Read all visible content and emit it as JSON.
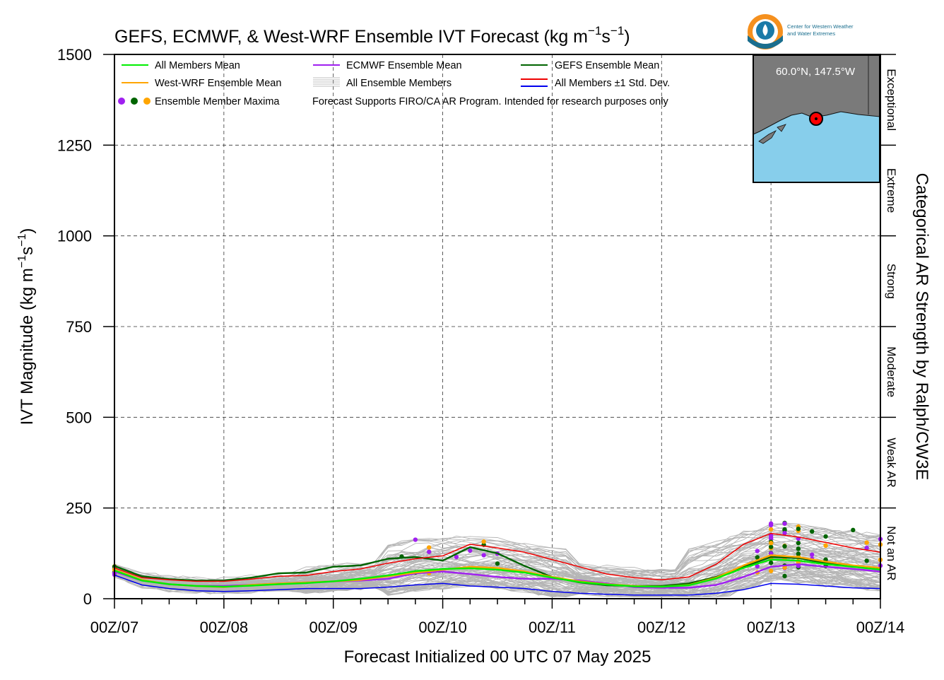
{
  "chart_data": {
    "type": "line",
    "title_main": "GEFS, ECMWF, & West-WRF Ensemble IVT Forecast (kg m",
    "title_sup1": "−1",
    "title_mid": "s",
    "title_sup2": "−1",
    "title_end": ")",
    "xlabel": "Forecast Initialized 00 UTC 07 May 2025",
    "ylabel_main": "IVT Magnitude (kg m",
    "ylabel_sup1": "−1",
    "ylabel_mid": "s",
    "ylabel_sup2": "−1",
    "ylabel_end": ")",
    "right_label": "Categorical AR Strength by Ralph/CW3E",
    "ylim": [
      0,
      1500
    ],
    "xlim": [
      0,
      168
    ],
    "grid": true,
    "x_unit": "forecast hours",
    "x_ticks": [
      {
        "x": 0,
        "label": "00Z/07"
      },
      {
        "x": 24,
        "label": "00Z/08"
      },
      {
        "x": 48,
        "label": "00Z/09"
      },
      {
        "x": 72,
        "label": "00Z/10"
      },
      {
        "x": 96,
        "label": "00Z/11"
      },
      {
        "x": 120,
        "label": "00Z/12"
      },
      {
        "x": 144,
        "label": "00Z/13"
      },
      {
        "x": 168,
        "label": "00Z/14"
      }
    ],
    "y_ticks": [
      {
        "y": 0,
        "label": "0"
      },
      {
        "y": 250,
        "label": "250"
      },
      {
        "y": 500,
        "label": "500"
      },
      {
        "y": 750,
        "label": "750"
      },
      {
        "y": 1000,
        "label": "1000"
      },
      {
        "y": 1250,
        "label": "1250"
      },
      {
        "y": 1500,
        "label": "1500"
      }
    ],
    "categories": [
      {
        "label": "Not an AR",
        "from": 0,
        "to": 250
      },
      {
        "label": "Weak AR",
        "from": 250,
        "to": 500
      },
      {
        "label": "Moderate",
        "from": 500,
        "to": 750
      },
      {
        "label": "Strong",
        "from": 750,
        "to": 1000
      },
      {
        "label": "Extreme",
        "from": 1000,
        "to": 1250
      },
      {
        "label": "Exceptional",
        "from": 1250,
        "to": 1500
      }
    ],
    "legend": {
      "all_mean": "All Members Mean",
      "wwrf_mean": "West-WRF Ensemble Mean",
      "maxima": "Ensemble Member Maxima",
      "ecmwf_mean": "ECMWF Ensemble Mean",
      "all_members": "All Ensemble Members",
      "note": "Forecast Supports FIRO/CA AR Program. Intended for research purposes only",
      "gefs_mean": "GEFS Ensemble Mean",
      "std": "All Members ±1 Std. Dev."
    },
    "inset_location": "60.0°N, 147.5°W",
    "logo_text_line1": "Center for Western Weather",
    "logo_text_line2": "and Water Extremes",
    "series": [
      {
        "name": "GEFS Ensemble Mean",
        "color": "#006400",
        "x": [
          0,
          6,
          12,
          18,
          24,
          30,
          36,
          42,
          48,
          54,
          60,
          66,
          72,
          78,
          84,
          90,
          96,
          102,
          108,
          114,
          120,
          126,
          132,
          138,
          144,
          150,
          156,
          162,
          168
        ],
        "values": [
          90,
          62,
          54,
          50,
          50,
          58,
          70,
          72,
          88,
          92,
          110,
          115,
          105,
          142,
          125,
          90,
          60,
          45,
          37,
          35,
          35,
          42,
          60,
          88,
          115,
          112,
          98,
          88,
          82
        ]
      },
      {
        "name": "All Members ±1 Std. Dev. (upper)",
        "color": "#ee0000",
        "x": [
          0,
          6,
          12,
          18,
          24,
          30,
          36,
          42,
          48,
          54,
          60,
          66,
          72,
          78,
          84,
          90,
          96,
          102,
          108,
          114,
          120,
          126,
          132,
          138,
          144,
          150,
          156,
          162,
          168
        ],
        "values": [
          85,
          58,
          52,
          48,
          48,
          54,
          62,
          64,
          75,
          82,
          98,
          110,
          118,
          150,
          140,
          128,
          108,
          88,
          68,
          58,
          52,
          60,
          95,
          150,
          180,
          170,
          155,
          140,
          128
        ]
      },
      {
        "name": "All Members ±1 Std. Dev. (lower)",
        "color": "#0000ee",
        "x": [
          0,
          6,
          12,
          18,
          24,
          30,
          36,
          42,
          48,
          54,
          60,
          66,
          72,
          78,
          84,
          90,
          96,
          102,
          108,
          114,
          120,
          126,
          132,
          138,
          144,
          150,
          156,
          162,
          168
        ],
        "values": [
          65,
          38,
          28,
          22,
          20,
          22,
          25,
          28,
          28,
          28,
          32,
          38,
          42,
          35,
          32,
          28,
          20,
          15,
          12,
          10,
          10,
          10,
          15,
          25,
          42,
          40,
          35,
          30,
          28
        ]
      },
      {
        "name": "ECMWF Ensemble Mean",
        "color": "#a020f0",
        "x": [
          0,
          6,
          12,
          18,
          24,
          30,
          36,
          42,
          48,
          54,
          60,
          66,
          72,
          78,
          84,
          90,
          96,
          102,
          108,
          114,
          120,
          126,
          132,
          138,
          144,
          150,
          156,
          162,
          168
        ],
        "values": [
          75,
          50,
          40,
          35,
          35,
          38,
          42,
          45,
          48,
          50,
          55,
          70,
          75,
          68,
          60,
          55,
          55,
          50,
          42,
          32,
          30,
          30,
          38,
          60,
          88,
          95,
          88,
          82,
          75
        ]
      },
      {
        "name": "West-WRF Ensemble Mean",
        "color": "#ffa500",
        "x": [
          0,
          6,
          12,
          18,
          24,
          30,
          36,
          42,
          48,
          54,
          60,
          66,
          72,
          78,
          84,
          90,
          96,
          102,
          108,
          114,
          120,
          126,
          132,
          138,
          144,
          150,
          156,
          162,
          168
        ],
        "values": [
          80,
          52,
          40,
          35,
          32,
          38,
          42,
          45,
          48,
          52,
          62,
          72,
          80,
          88,
          85,
          75,
          60,
          48,
          40,
          35,
          33,
          38,
          58,
          92,
          120,
          115,
          102,
          92,
          85
        ]
      },
      {
        "name": "All Members Mean",
        "color": "#00ee00",
        "x": [
          0,
          6,
          12,
          18,
          24,
          30,
          36,
          42,
          48,
          54,
          60,
          66,
          72,
          78,
          84,
          90,
          96,
          102,
          108,
          114,
          120,
          126,
          132,
          138,
          144,
          150,
          156,
          162,
          168
        ],
        "values": [
          78,
          50,
          40,
          35,
          33,
          36,
          40,
          43,
          48,
          55,
          64,
          76,
          82,
          84,
          80,
          72,
          58,
          46,
          39,
          34,
          33,
          37,
          56,
          85,
          108,
          105,
          95,
          88,
          80
        ]
      }
    ],
    "maxima_colors": [
      "#a020f0",
      "#006400",
      "#ffa500"
    ]
  }
}
